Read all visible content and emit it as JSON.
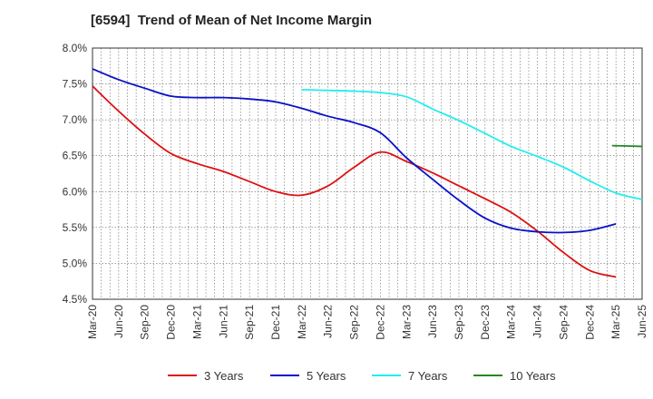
{
  "chart_data": {
    "type": "line",
    "title": "[6594]  Trend of Mean of Net Income Margin",
    "xlabel": "",
    "ylabel": "",
    "y_axis": {
      "min": 4.5,
      "max": 8.0,
      "ticks": [
        4.5,
        5.0,
        5.5,
        6.0,
        6.5,
        7.0,
        7.5,
        8.0
      ],
      "tick_labels": [
        "4.5%",
        "5.0%",
        "5.5%",
        "6.0%",
        "6.5%",
        "7.0%",
        "7.5%",
        "8.0%"
      ]
    },
    "x_axis": {
      "tick_labels": [
        "Mar-20",
        "Jun-20",
        "Sep-20",
        "Dec-20",
        "Mar-21",
        "Jun-21",
        "Sep-21",
        "Dec-21",
        "Mar-22",
        "Jun-22",
        "Sep-22",
        "Dec-22",
        "Mar-23",
        "Jun-23",
        "Sep-23",
        "Dec-23",
        "Mar-24",
        "Jun-24",
        "Sep-24",
        "Dec-24",
        "Mar-25",
        "Jun-25"
      ]
    },
    "grid": true,
    "legend_position": "bottom",
    "series": [
      {
        "name": "3 Years",
        "color": "#dd1111",
        "start_index": 0,
        "values": [
          7.47,
          7.12,
          6.8,
          6.53,
          6.39,
          6.28,
          6.14,
          6.0,
          5.95,
          6.08,
          6.34,
          6.55,
          6.42,
          6.26,
          6.08,
          5.9,
          5.71,
          5.45,
          5.15,
          4.9,
          4.81
        ]
      },
      {
        "name": "5 Years",
        "color": "#0a10c8",
        "start_index": 0,
        "values": [
          7.71,
          7.56,
          7.44,
          7.33,
          7.31,
          7.31,
          7.29,
          7.25,
          7.16,
          7.05,
          6.96,
          6.82,
          6.47,
          6.17,
          5.88,
          5.63,
          5.49,
          5.44,
          5.43,
          5.46,
          5.55
        ]
      },
      {
        "name": "7 Years",
        "color": "#22eeee",
        "start_index": 8,
        "values": [
          7.42,
          7.41,
          7.4,
          7.38,
          7.32,
          7.15,
          6.99,
          6.81,
          6.63,
          6.49,
          6.34,
          6.15,
          5.98,
          5.89
        ]
      },
      {
        "name": "10 Years",
        "color": "#228822",
        "start_index": 20,
        "values": [
          6.64,
          6.63
        ],
        "x_offsets": [
          -0.15,
          0
        ]
      }
    ]
  }
}
